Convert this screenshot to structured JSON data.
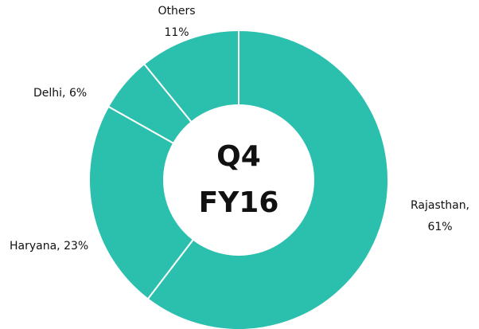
{
  "chart_data": {
    "type": "donut",
    "values": [
      61,
      23,
      6,
      11
    ],
    "value_labels": [
      "Rajasthan, 61%",
      "Haryana, 23%",
      "Delhi, 6%",
      "Others 11%"
    ],
    "color": "#2bbfae",
    "center_label": [
      "Q4",
      "FY16"
    ]
  }
}
